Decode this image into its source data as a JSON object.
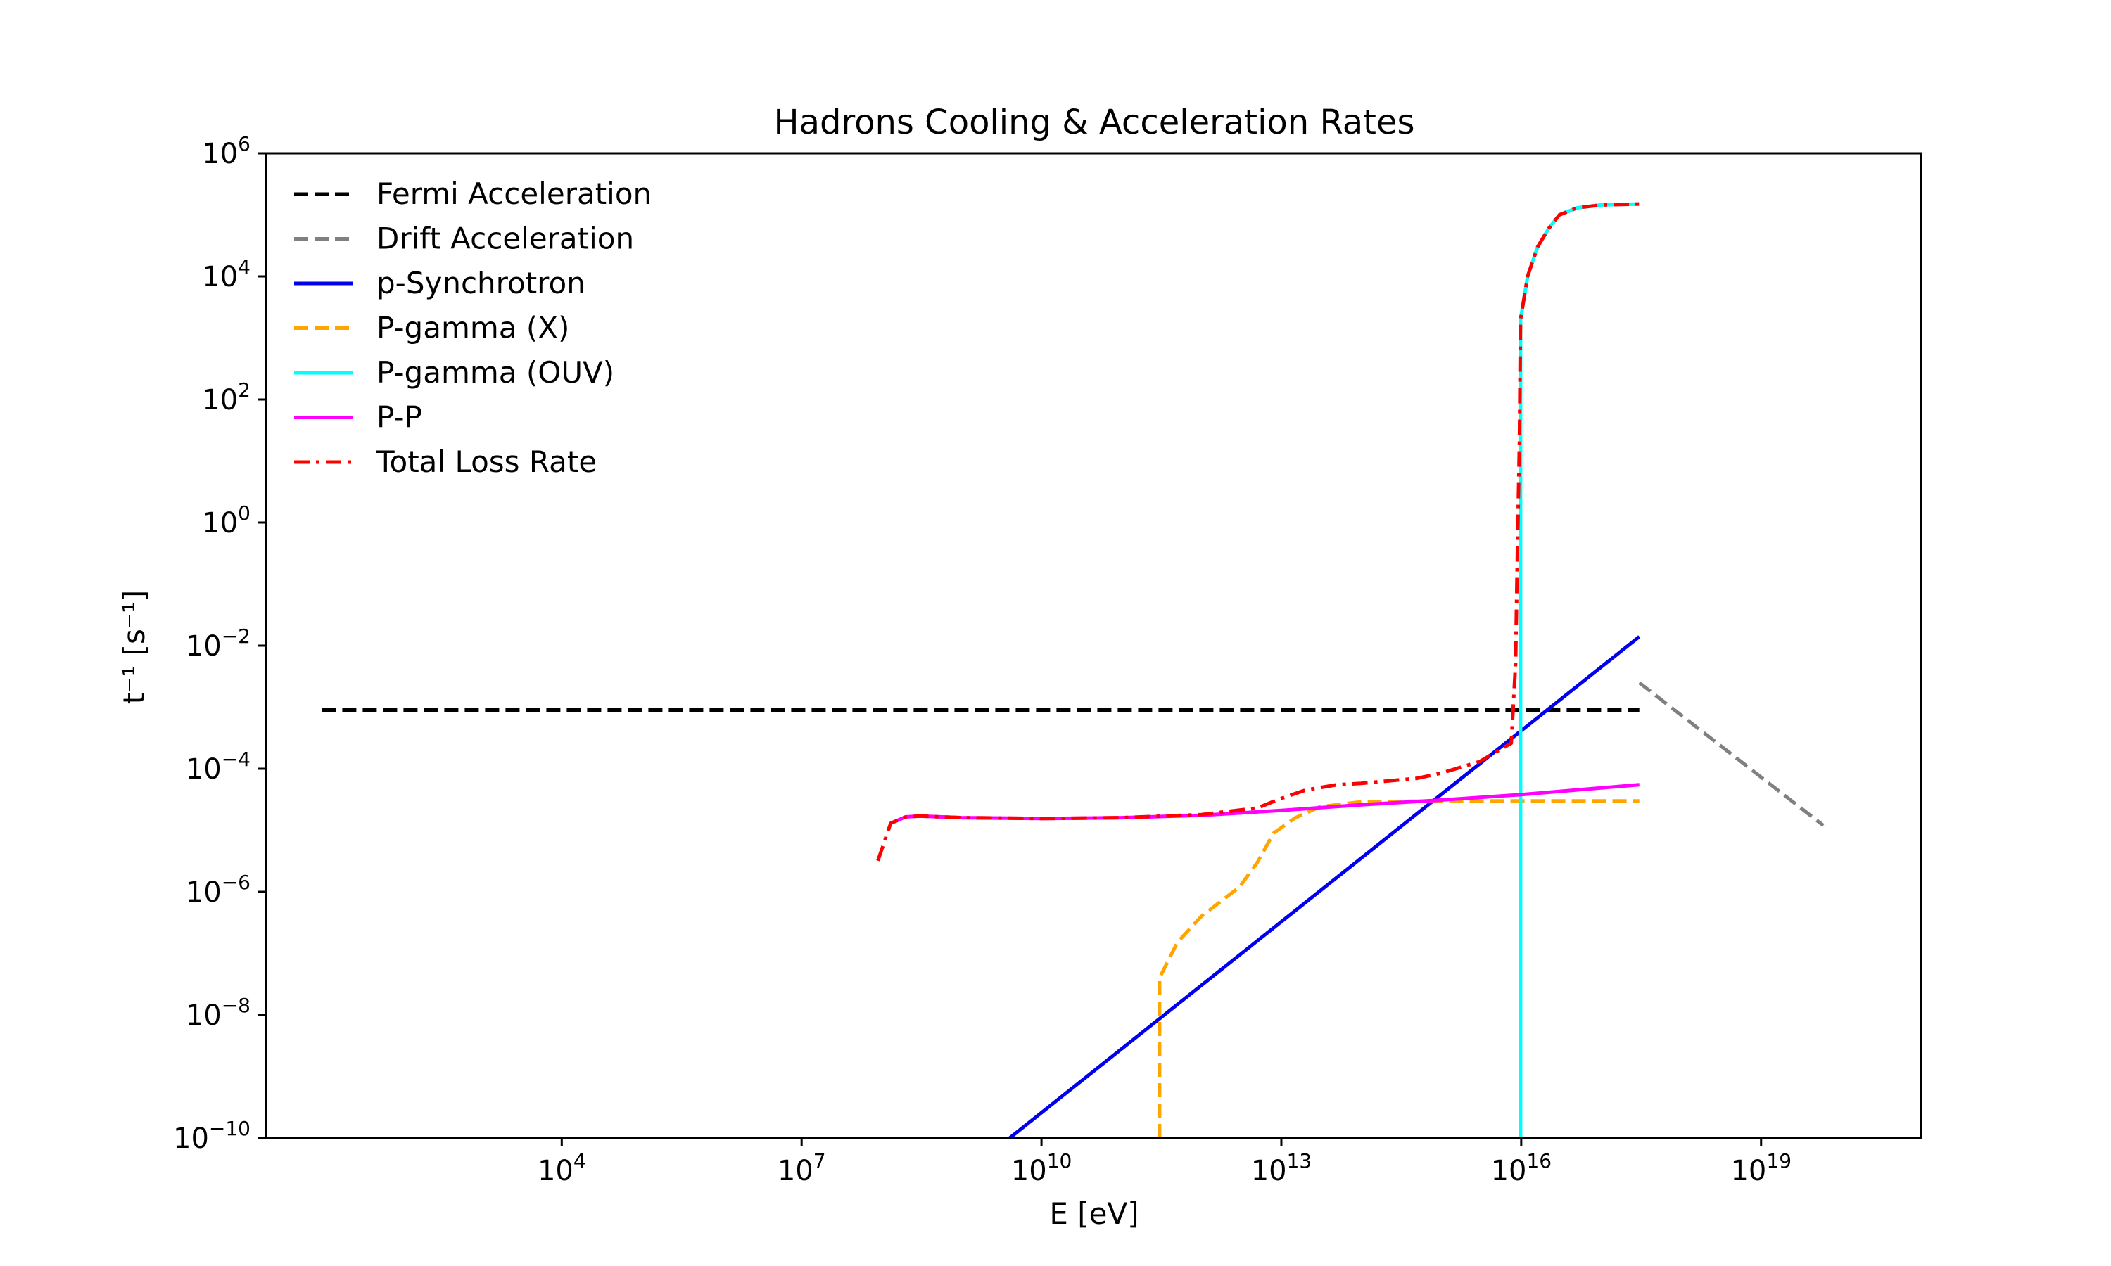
{
  "chart_data": {
    "type": "line",
    "title": "Hadrons Cooling & Acceleration Rates",
    "xlabel": "E [eV]",
    "ylabel": "t⁻¹ [s⁻¹]",
    "xscale": "log",
    "yscale": "log",
    "xlim": [
      2.0,
      1e+21
    ],
    "ylim": [
      1e-10,
      1000000.0
    ],
    "xticks": [
      {
        "exp": "4",
        "value": 10000.0
      },
      {
        "exp": "7",
        "value": 10000000.0
      },
      {
        "exp": "10",
        "value": 10000000000.0
      },
      {
        "exp": "13",
        "value": 10000000000000.0
      },
      {
        "exp": "16",
        "value": 1e+16
      },
      {
        "exp": "19",
        "value": 1e+19
      }
    ],
    "yticks": [
      {
        "exp": "−10",
        "value": 1e-10
      },
      {
        "exp": "−8",
        "value": 1e-08
      },
      {
        "exp": "−6",
        "value": 1e-06
      },
      {
        "exp": "−4",
        "value": 0.0001
      },
      {
        "exp": "−2",
        "value": 0.01
      },
      {
        "exp": "0",
        "value": 1
      },
      {
        "exp": "2",
        "value": 100.0
      },
      {
        "exp": "4",
        "value": 10000.0
      },
      {
        "exp": "6",
        "value": 1000000.0
      }
    ],
    "legend_position": "upper-left",
    "grid": false,
    "series": [
      {
        "name": "Fermi Acceleration",
        "color": "#000000",
        "dash": "dashed",
        "points": [
          [
            10.0,
            0.0009
          ],
          [
            3e+17,
            0.0009
          ]
        ]
      },
      {
        "name": "Drift Acceleration",
        "color": "#808080",
        "dash": "dashed",
        "points": [
          [
            3e+17,
            0.0025
          ],
          [
            6e+19,
            1.2e-05
          ]
        ]
      },
      {
        "name": "p-Synchrotron",
        "color": "#0000ee",
        "dash": "solid",
        "points": [
          [
            4000000000.0,
            1e-10
          ],
          [
            3e+17,
            0.014
          ]
        ]
      },
      {
        "name": "P-gamma (X)",
        "color": "#ffa500",
        "dash": "dashed",
        "points": [
          [
            300000000000.0,
            1e-10
          ],
          [
            300000000000.0,
            4e-08
          ],
          [
            500000000000.0,
            1.5e-07
          ],
          [
            1000000000000.0,
            4e-07
          ],
          [
            2000000000000.0,
            8e-07
          ],
          [
            3000000000000.0,
            1.2e-06
          ],
          [
            5000000000000.0,
            3e-06
          ],
          [
            8000000000000.0,
            9e-06
          ],
          [
            15000000000000.0,
            1.6e-05
          ],
          [
            30000000000000.0,
            2.4e-05
          ],
          [
            100000000000000.0,
            2.9e-05
          ],
          [
            1000000000000000.0,
            3e-05
          ],
          [
            1e+16,
            3e-05
          ],
          [
            3e+17,
            3e-05
          ]
        ]
      },
      {
        "name": "P-gamma (OUV)",
        "color": "#00ffff",
        "dash": "solid",
        "points": [
          [
            9800000000000000.0,
            1e-10
          ],
          [
            9800000000000000.0,
            20.0
          ],
          [
            9800000000000000.0,
            2000.0
          ],
          [
            1.2e+16,
            10000.0
          ],
          [
            1.6e+16,
            30000.0
          ],
          [
            2.2e+16,
            60000.0
          ],
          [
            3e+16,
            100000.0
          ],
          [
            5e+16,
            130000.0
          ],
          [
            1e+17,
            145000.0
          ],
          [
            3e+17,
            150000.0
          ]
        ]
      },
      {
        "name": "P-P",
        "color": "#ff00ff",
        "dash": "solid",
        "points": [
          [
            130000000.0,
            1.3e-05
          ],
          [
            200000000.0,
            1.65e-05
          ],
          [
            300000000.0,
            1.7e-05
          ],
          [
            1000000000.0,
            1.6e-05
          ],
          [
            10000000000.0,
            1.55e-05
          ],
          [
            100000000000.0,
            1.6e-05
          ],
          [
            1000000000000.0,
            1.75e-05
          ],
          [
            10000000000000.0,
            2.1e-05
          ],
          [
            100000000000000.0,
            2.6e-05
          ],
          [
            1000000000000000.0,
            3.1e-05
          ],
          [
            1e+16,
            3.8e-05
          ],
          [
            3e+17,
            5.5e-05
          ]
        ]
      },
      {
        "name": "Total Loss Rate",
        "color": "#ff0000",
        "dash": "dashdot",
        "points": [
          [
            90000000.0,
            3.2e-06
          ],
          [
            130000000.0,
            1.3e-05
          ],
          [
            200000000.0,
            1.65e-05
          ],
          [
            300000000.0,
            1.7e-05
          ],
          [
            1000000000.0,
            1.6e-05
          ],
          [
            10000000000.0,
            1.55e-05
          ],
          [
            100000000000.0,
            1.6e-05
          ],
          [
            1000000000000.0,
            1.8e-05
          ],
          [
            5000000000000.0,
            2.3e-05
          ],
          [
            10000000000000.0,
            3.3e-05
          ],
          [
            20000000000000.0,
            4.5e-05
          ],
          [
            50000000000000.0,
            5.5e-05
          ],
          [
            100000000000000.0,
            5.8e-05
          ],
          [
            500000000000000.0,
            7e-05
          ],
          [
            1000000000000000.0,
            8.5e-05
          ],
          [
            3000000000000000.0,
            0.00013
          ],
          [
            6000000000000000.0,
            0.00022
          ],
          [
            7500000000000000.0,
            0.00026
          ],
          [
            8500000000000000.0,
            0.005
          ],
          [
            9000000000000000.0,
            0.5
          ],
          [
            9500000000000000.0,
            20.0
          ],
          [
            9800000000000000.0,
            2000.0
          ],
          [
            1.2e+16,
            10000.0
          ],
          [
            1.6e+16,
            30000.0
          ],
          [
            2.2e+16,
            60000.0
          ],
          [
            3e+16,
            100000.0
          ],
          [
            5e+16,
            130000.0
          ],
          [
            1e+17,
            145000.0
          ],
          [
            3e+17,
            150000.0
          ]
        ]
      }
    ]
  }
}
